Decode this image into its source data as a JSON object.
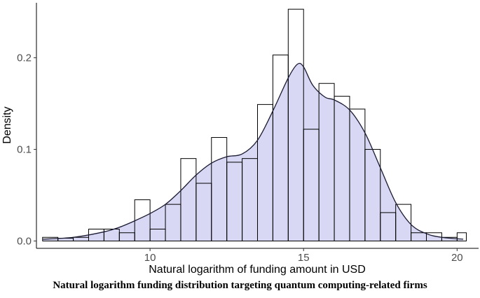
{
  "chart_data": {
    "type": "histogram",
    "title": "",
    "xlabel": "Natural logarithm of funding amount in USD",
    "ylabel": "Density",
    "xlim": [
      6.3,
      20.7
    ],
    "ylim": [
      -0.008,
      0.26
    ],
    "x_ticks": [
      10,
      15,
      20
    ],
    "y_ticks": [
      0.0,
      0.1,
      0.2
    ],
    "y_tick_labels": [
      "0.0",
      "0.1",
      "0.2"
    ],
    "grid": false,
    "bin_width": 0.5,
    "bins": [
      {
        "x0": 6.5,
        "x1": 7.0,
        "density": 0.004
      },
      {
        "x0": 7.0,
        "x1": 7.5,
        "density": 0.003
      },
      {
        "x0": 7.5,
        "x1": 8.0,
        "density": 0.004
      },
      {
        "x0": 8.0,
        "x1": 8.5,
        "density": 0.013
      },
      {
        "x0": 8.5,
        "x1": 9.0,
        "density": 0.013
      },
      {
        "x0": 9.0,
        "x1": 9.5,
        "density": 0.009
      },
      {
        "x0": 9.5,
        "x1": 10.0,
        "density": 0.045
      },
      {
        "x0": 10.0,
        "x1": 10.5,
        "density": 0.013
      },
      {
        "x0": 10.5,
        "x1": 11.0,
        "density": 0.04
      },
      {
        "x0": 11.0,
        "x1": 11.5,
        "density": 0.09
      },
      {
        "x0": 11.5,
        "x1": 12.0,
        "density": 0.063
      },
      {
        "x0": 12.0,
        "x1": 12.5,
        "density": 0.113
      },
      {
        "x0": 12.5,
        "x1": 13.0,
        "density": 0.086
      },
      {
        "x0": 13.0,
        "x1": 13.5,
        "density": 0.09
      },
      {
        "x0": 13.5,
        "x1": 14.0,
        "density": 0.149
      },
      {
        "x0": 14.0,
        "x1": 14.5,
        "density": 0.203
      },
      {
        "x0": 14.5,
        "x1": 15.0,
        "density": 0.253
      },
      {
        "x0": 15.0,
        "x1": 15.5,
        "density": 0.122
      },
      {
        "x0": 15.5,
        "x1": 16.0,
        "density": 0.172
      },
      {
        "x0": 16.0,
        "x1": 16.5,
        "density": 0.158
      },
      {
        "x0": 16.5,
        "x1": 17.0,
        "density": 0.144
      },
      {
        "x0": 17.0,
        "x1": 17.5,
        "density": 0.1
      },
      {
        "x0": 17.5,
        "x1": 18.0,
        "density": 0.031
      },
      {
        "x0": 18.0,
        "x1": 18.5,
        "density": 0.04
      },
      {
        "x0": 18.5,
        "x1": 19.0,
        "density": 0.009
      },
      {
        "x0": 19.0,
        "x1": 19.5,
        "density": 0.009
      },
      {
        "x0": 19.5,
        "x1": 20.0,
        "density": 0.004
      },
      {
        "x0": 20.0,
        "x1": 20.3,
        "density": 0.009
      }
    ],
    "density_curve": {
      "x": [
        6.5,
        7.5,
        8.5,
        9.0,
        9.5,
        10.0,
        10.5,
        11.0,
        11.5,
        12.0,
        12.5,
        13.0,
        13.5,
        14.0,
        14.5,
        14.8,
        15.0,
        15.3,
        15.7,
        16.0,
        16.5,
        17.0,
        17.5,
        18.0,
        18.5,
        19.0,
        19.5,
        20.2
      ],
      "y": [
        0.002,
        0.004,
        0.01,
        0.015,
        0.022,
        0.03,
        0.04,
        0.055,
        0.072,
        0.085,
        0.092,
        0.095,
        0.11,
        0.142,
        0.178,
        0.193,
        0.19,
        0.17,
        0.157,
        0.154,
        0.143,
        0.118,
        0.08,
        0.042,
        0.018,
        0.008,
        0.004,
        0.002
      ]
    },
    "colors": {
      "density_fill": "#d8d8f4",
      "bar_stroke": "#000000",
      "curve_stroke": "#1a1a33"
    }
  },
  "caption": "Natural logarithm funding distribution targeting quantum computing-related firms"
}
